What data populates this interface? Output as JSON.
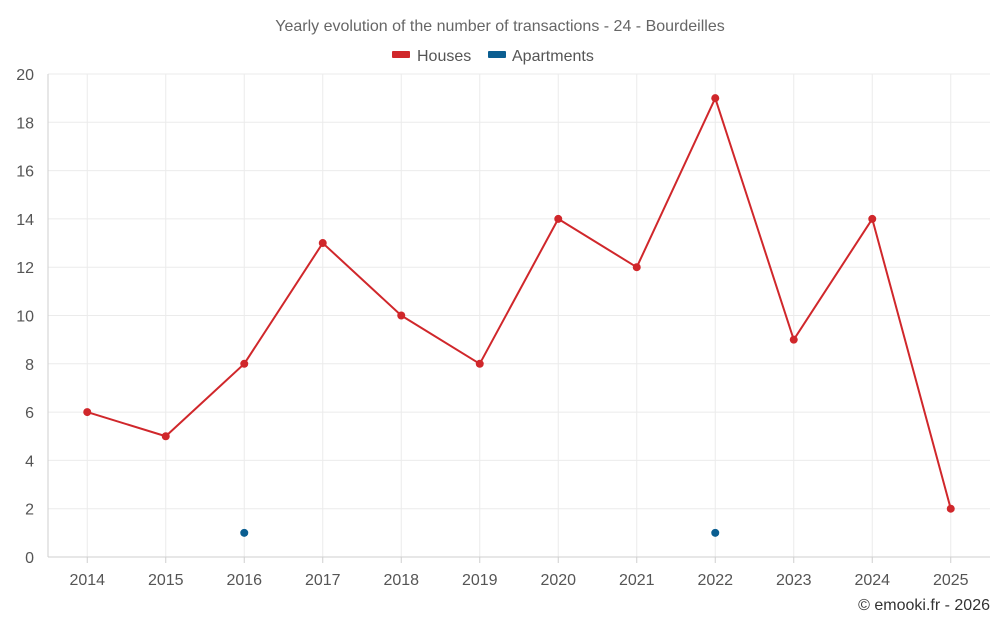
{
  "chart_data": {
    "type": "line",
    "title": "Yearly evolution of the number of transactions - 24 - Bourdeilles",
    "categories": [
      "2014",
      "2015",
      "2016",
      "2017",
      "2018",
      "2019",
      "2020",
      "2021",
      "2022",
      "2023",
      "2024",
      "2025"
    ],
    "ylim": [
      0,
      20
    ],
    "yticks": [
      0,
      2,
      4,
      6,
      8,
      10,
      12,
      14,
      16,
      18,
      20
    ],
    "grid": true,
    "legend_position": "top-center",
    "series": [
      {
        "name": "Houses",
        "color": "#d0272b",
        "values": [
          6,
          5,
          8,
          13,
          10,
          8,
          14,
          12,
          19,
          9,
          14,
          2
        ]
      },
      {
        "name": "Apartments",
        "color": "#0b5e91",
        "values": [
          null,
          null,
          1,
          null,
          null,
          null,
          null,
          null,
          1,
          null,
          null,
          null
        ]
      }
    ],
    "xlabel": "",
    "ylabel": ""
  },
  "credit": "© emooki.fr - 2026"
}
